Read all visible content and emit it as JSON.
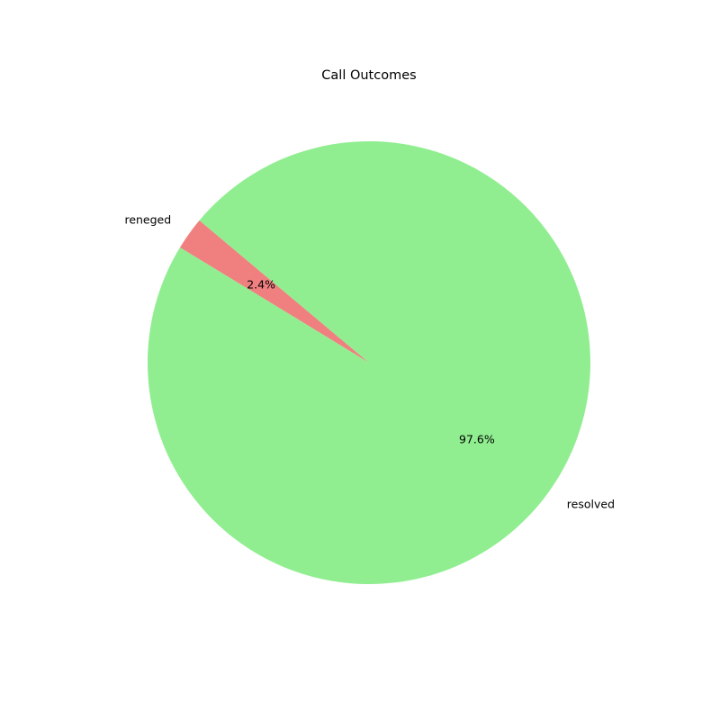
{
  "chart_data": {
    "type": "pie",
    "title": "Call Outcomes",
    "slices": [
      {
        "label": "reneged",
        "value": 2.4,
        "pct_label": "2.4%",
        "color": "#f08080"
      },
      {
        "label": "resolved",
        "value": 97.6,
        "pct_label": "97.6%",
        "color": "#90ee90"
      }
    ],
    "start_angle_deg": 140,
    "direction": "counterclockwise",
    "legend": "none"
  }
}
